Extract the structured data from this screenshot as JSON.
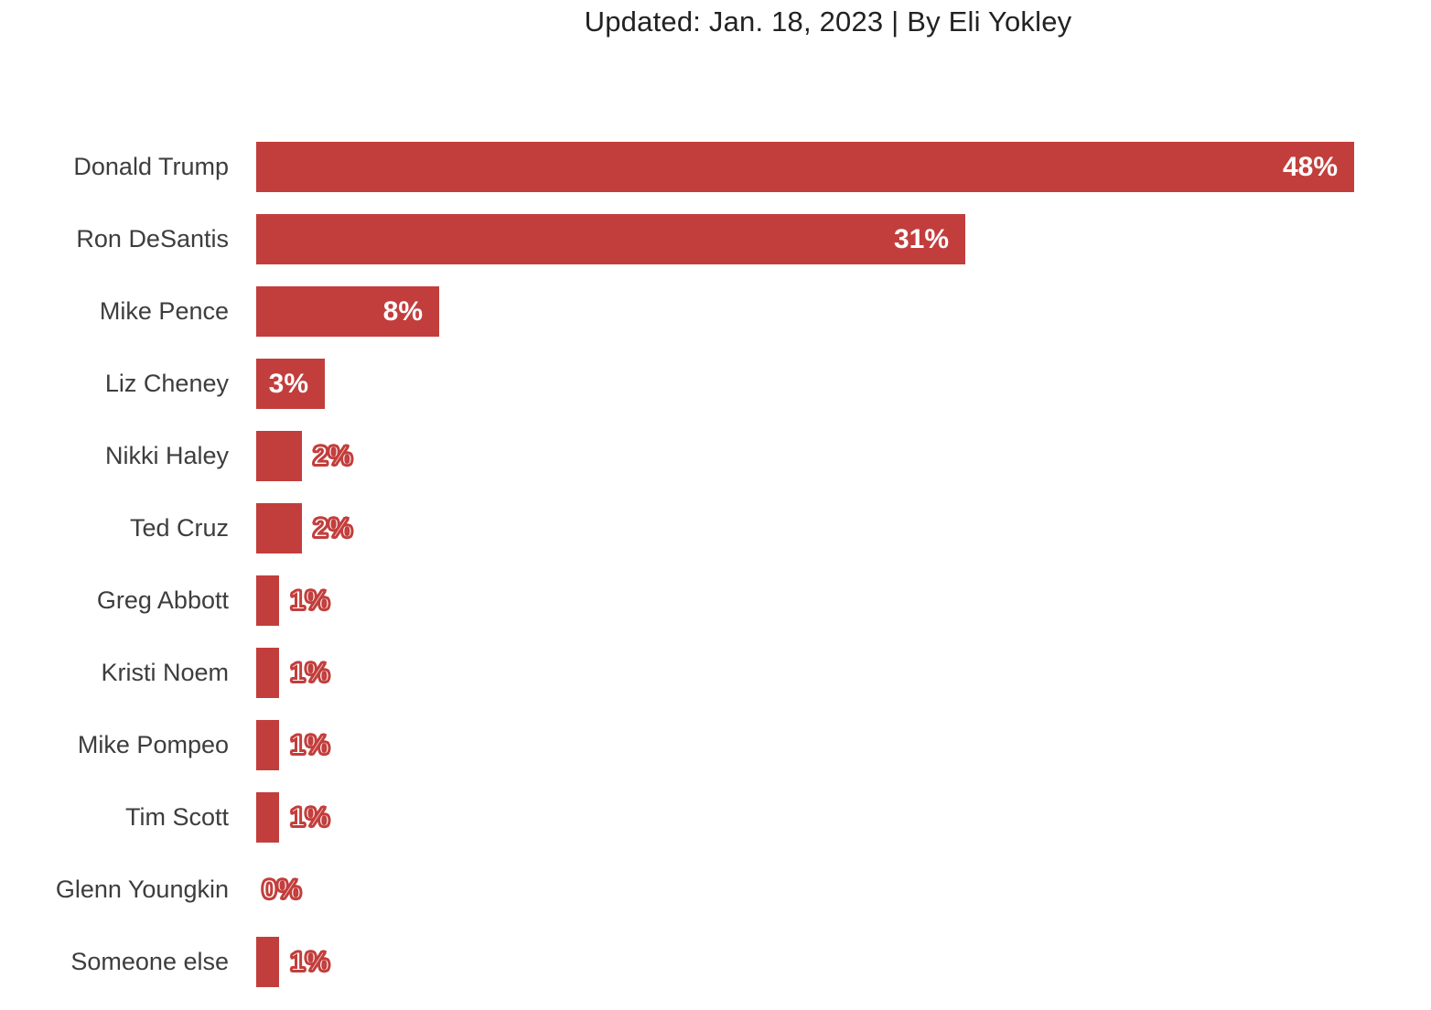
{
  "header": {
    "title": "Updated: Jan. 18, 2023 | By Eli Yokley"
  },
  "colors": {
    "bar": "#C23E3C",
    "category_label": "#3D3D3D",
    "header_text": "#222222",
    "inside_value_label": "#FFFFFF"
  },
  "chart_data": {
    "type": "bar",
    "orientation": "horizontal",
    "title": "Updated: Jan. 18, 2023 | By Eli Yokley",
    "categories": [
      "Donald Trump",
      "Ron DeSantis",
      "Mike Pence",
      "Liz Cheney",
      "Nikki Haley",
      "Ted Cruz",
      "Greg Abbott",
      "Kristi Noem",
      "Mike Pompeo",
      "Tim Scott",
      "Glenn Youngkin",
      "Someone else"
    ],
    "values": [
      48,
      31,
      8,
      3,
      2,
      2,
      1,
      1,
      1,
      1,
      0,
      1
    ],
    "value_labels": [
      "48%",
      "31%",
      "8%",
      "3%",
      "2%",
      "2%",
      "1%",
      "1%",
      "1%",
      "1%",
      "0%",
      "1%"
    ],
    "xlim": [
      0,
      50
    ],
    "bar_color": "#C23E3C",
    "grid": false,
    "legend": "none",
    "value_label_placement": "inside bar when value >= 3, outlined outside otherwise"
  }
}
